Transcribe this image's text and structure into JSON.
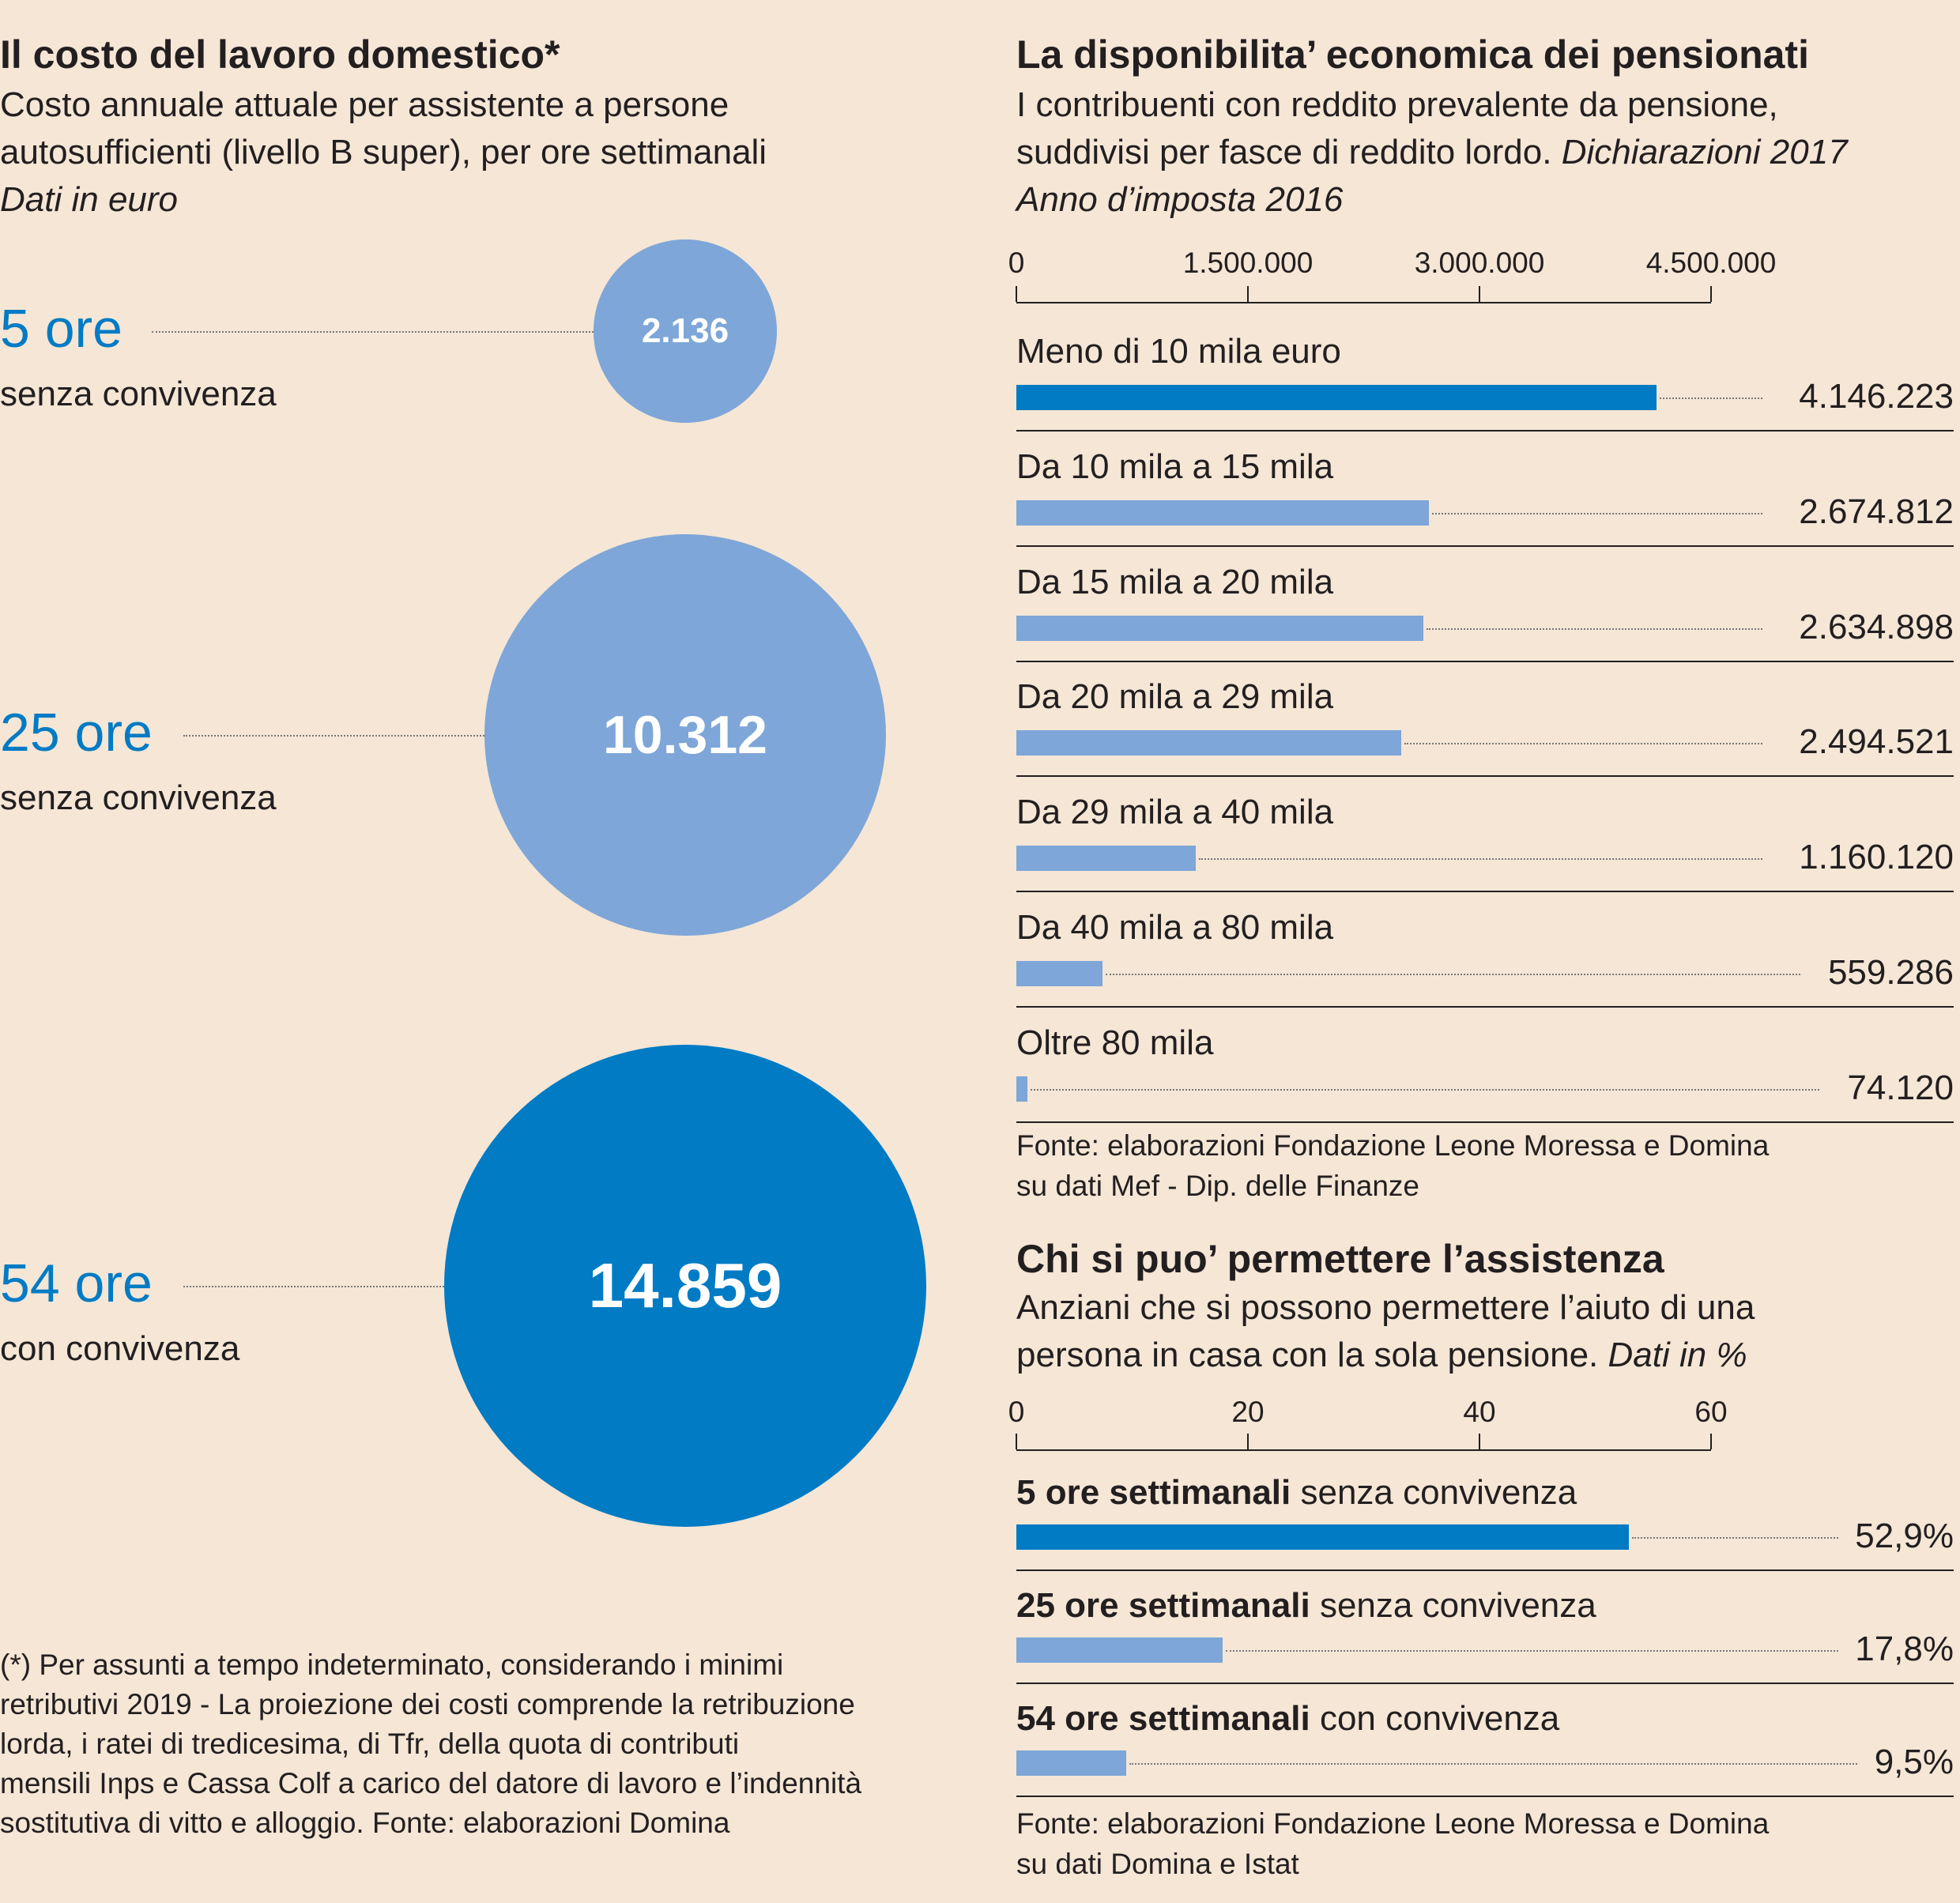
{
  "colors": {
    "background": "#f5e6d6",
    "dark_blue": "#007bc4",
    "light_blue": "#7ea6d8"
  },
  "left": {
    "title": "Il costo del lavoro domestico*",
    "subtitle_lines": [
      "Costo annuale attuale per assistente a persone",
      "autosufficienti (livello B super), per ore settimanali"
    ],
    "unit": "Dati in euro",
    "footnote_lines": [
      "(*) Per assunti a tempo indeterminato, considerando i minimi",
      "retributivi 2019 - La proiezione dei costi comprende la retribuzione",
      "lorda, i ratei di tredicesima, di Tfr, della quota di contributi",
      "mensili Inps e Cassa Colf a carico del datore di lavoro e l’indennità",
      "sostitutiva di vitto e alloggio. Fonte: elaborazioni Domina"
    ]
  },
  "chart_data": [
    {
      "type": "bubble",
      "categories": [
        "5 ore",
        "25 ore",
        "54 ore"
      ],
      "category_notes": [
        "senza convivenza",
        "senza convivenza",
        "con convivenza"
      ],
      "values": [
        2136,
        10312,
        14859
      ],
      "labels": [
        "2.136",
        "10.312",
        "14.859"
      ],
      "colors": [
        "#7ea6d8",
        "#7ea6d8",
        "#007bc4"
      ]
    },
    {
      "type": "bar",
      "orientation": "horizontal",
      "title": "La disponibilita’ economica dei pensionati",
      "subtitle_lines": [
        "I contribuenti con reddito prevalente da pensione,",
        "suddivisi per fasce di reddito lordo."
      ],
      "subtitle_italic": "Dichiarazioni 2017",
      "subtitle_italic2": "Anno d’imposta 2016",
      "xlim": [
        0,
        4500000
      ],
      "ticks": [
        0,
        1500000,
        3000000,
        4500000
      ],
      "tick_labels": [
        "0",
        "1.500.000",
        "3.000.000",
        "4.500.000"
      ],
      "categories": [
        "Meno di 10 mila euro",
        "Da 10 mila a 15 mila",
        "Da 15 mila a 20 mila",
        "Da 20 mila a 29 mila",
        "Da 29 mila a 40 mila",
        "Da 40 mila a 80 mila",
        "Oltre 80 mila"
      ],
      "values": [
        4146223,
        2674812,
        2634898,
        2494521,
        1160120,
        559286,
        74120
      ],
      "labels": [
        "4.146.223",
        "2.674.812",
        "2.634.898",
        "2.494.521",
        "1.160.120",
        "559.286",
        "74.120"
      ],
      "colors": [
        "#007bc4",
        "#7ea6d8",
        "#7ea6d8",
        "#7ea6d8",
        "#7ea6d8",
        "#7ea6d8",
        "#7ea6d8"
      ],
      "source_lines": [
        "Fonte: elaborazioni Fondazione Leone Moressa e Domina",
        "su dati Mef - Dip. delle Finanze"
      ]
    },
    {
      "type": "bar",
      "orientation": "horizontal",
      "title": "Chi si puo’ permettere l’assistenza",
      "subtitle_lines": [
        "Anziani che si possono permettere l’aiuto di una",
        "persona in casa con la sola pensione."
      ],
      "subtitle_italic": "Dati in %",
      "xlim": [
        0,
        60
      ],
      "ticks": [
        0,
        20,
        40,
        60
      ],
      "tick_labels": [
        "0",
        "20",
        "40",
        "60"
      ],
      "categories_bold": [
        "5 ore settimanali",
        "25 ore settimanali",
        "54 ore settimanali"
      ],
      "categories_rest": [
        " senza convivenza",
        " senza convivenza",
        " con convivenza"
      ],
      "values": [
        52.9,
        17.8,
        9.5
      ],
      "labels": [
        "52,9%",
        "17,8%",
        "9,5%"
      ],
      "colors": [
        "#007bc4",
        "#7ea6d8",
        "#7ea6d8"
      ],
      "source_lines": [
        "Fonte: elaborazioni Fondazione Leone Moressa e Domina",
        "su dati Domina e Istat"
      ]
    }
  ]
}
